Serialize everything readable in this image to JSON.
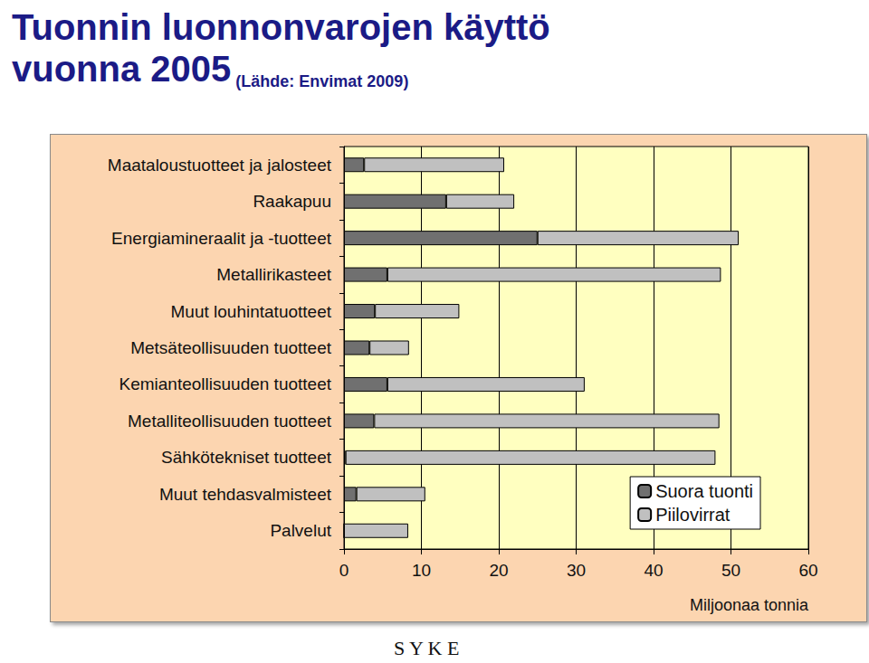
{
  "chart_data": {
    "type": "bar",
    "orientation": "horizontal",
    "stacked": true,
    "title": "Tuonnin luonnonvarojen käyttö\nvuonna 2005",
    "subtitle": "(Lähde: Envimat 2009)",
    "x_label": "Miljoonaa tonnia",
    "categories": [
      "Maataloustuotteet ja jalosteet",
      "Raakapuu",
      "Energiamineraalit ja -tuotteet",
      "Metallirikasteet",
      "Muut louhintatuotteet",
      "Metsäteollisuuden tuotteet",
      "Kemianteollisuuden tuotteet",
      "Metalliteollisuuden tuotteet",
      "Sähkötekniset tuotteet",
      "Muut tehdasvalmisteet",
      "Palvelut"
    ],
    "series": [
      {
        "name": "Suora tuonti",
        "color": "#707070",
        "values": [
          2.6,
          13.2,
          25.0,
          5.6,
          4.0,
          3.3,
          5.6,
          3.9,
          0.2,
          1.6,
          0
        ]
      },
      {
        "name": "Piilovirrat",
        "color": "#C0C0C0",
        "values": [
          18.1,
          8.8,
          26.0,
          43.1,
          10.9,
          5.1,
          25.5,
          44.6,
          47.8,
          8.9,
          8.3
        ]
      }
    ],
    "xlim": [
      0,
      60
    ],
    "xticks": [
      0,
      10,
      20,
      30,
      40,
      50,
      60
    ],
    "grid": true,
    "legend": "lower right",
    "logo": "S Y K E"
  }
}
